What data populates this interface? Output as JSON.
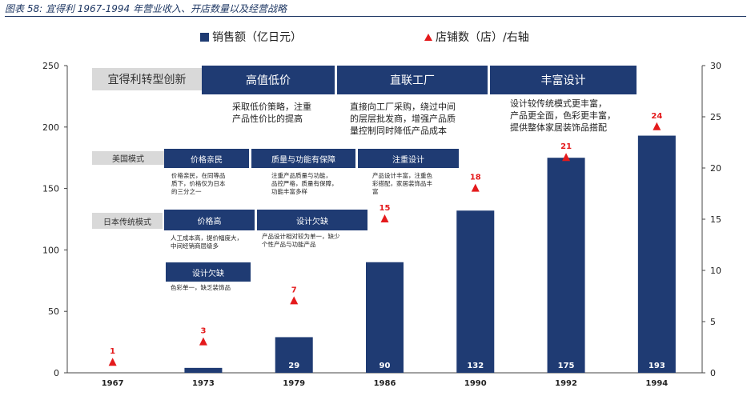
{
  "figure_title": "图表 58:  宜得利 1967-1994 年营业收入、开店数量以及经营战略",
  "chart_data": {
    "type": "bar",
    "categories": [
      "1967",
      "1973",
      "1979",
      "1986",
      "1990",
      "1992",
      "1994"
    ],
    "series": [
      {
        "name": "销售额（亿日元）",
        "type": "bar",
        "axis": "left",
        "values": [
          0,
          4,
          29,
          90,
          132,
          175,
          193
        ],
        "labels": [
          "",
          "",
          "29",
          "90",
          "132",
          "175",
          "193"
        ]
      },
      {
        "name": "店铺数（店）/右轴",
        "type": "scatter",
        "axis": "right",
        "values": [
          1,
          3,
          7,
          15,
          18,
          21,
          24
        ]
      }
    ],
    "ylim": [
      0,
      250
    ],
    "yticks": [
      "0",
      "50",
      "100",
      "150",
      "200",
      "250"
    ],
    "y2lim": [
      0,
      30
    ],
    "y2ticks": [
      "0",
      "5",
      "10",
      "15",
      "20",
      "25",
      "30"
    ],
    "legend": "top",
    "grid": false,
    "colors": {
      "bar": "#1f3b73",
      "marker": "#e41a1c"
    }
  },
  "annotations": {
    "transform_tag": "宜得利转型创新",
    "strategies": [
      {
        "title": "高值低价",
        "desc": "采取低价策略，注重\n产品性价比的提高"
      },
      {
        "title": "直联工厂",
        "desc": "直接向工厂采购，绕过中间\n的层层批发商，增强产品质\n量控制同时降低产品成本"
      },
      {
        "title": "丰富设计",
        "desc": "设计较传统模式更丰富，\n产品更全面，色彩更丰富，\n提供整体家居装饰品搭配"
      }
    ],
    "us_model": {
      "tag": "美国模式",
      "items": [
        {
          "title": "价格亲民",
          "desc": "价格亲民，在同等品\n质下，价格仅为日本\n的三分之一"
        },
        {
          "title": "质量与功能有保障",
          "desc": "注重产品质量与功能，\n品控严格，质量有保障，\n功能丰富多样"
        },
        {
          "title": "注重设计",
          "desc": "产品设计丰富，注重色\n彩搭配，家居装饰品丰\n富"
        }
      ]
    },
    "japan_model": {
      "tag": "日本传统模式",
      "items": [
        {
          "title": "价格高",
          "desc": "人工成本高，提价幅度大，\n中间经销商层级多"
        },
        {
          "title": "设计欠缺",
          "desc": "产品设计相对较为单一，缺少\n个性产品与功能产品"
        },
        {
          "title": "设计欠缺",
          "desc": "色彩单一，缺乏装饰品"
        }
      ]
    }
  }
}
